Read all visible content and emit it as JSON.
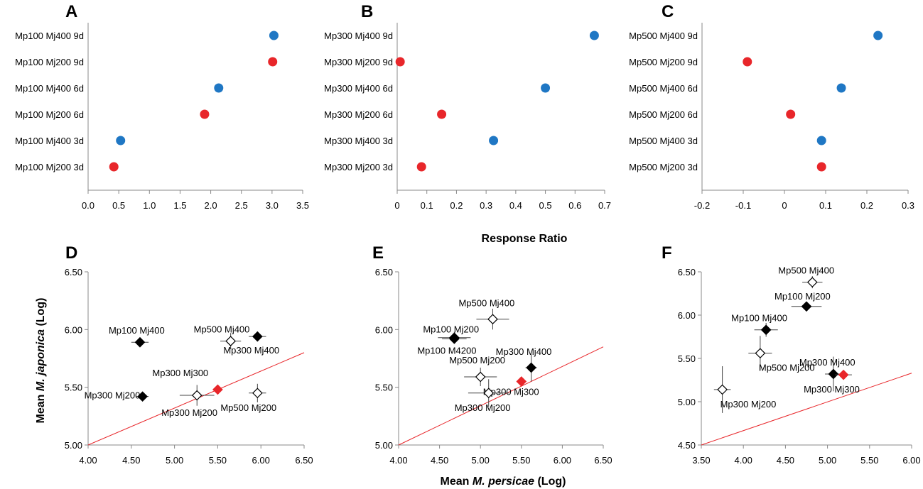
{
  "axis_titles": {
    "response_ratio": "Response Ratio",
    "y_bottom_prefix": "Mean ",
    "y_bottom_italic": "M. japonica",
    "y_bottom_suffix": " (Log)",
    "x_bottom_prefix": "Mean ",
    "x_bottom_italic": "M. persicae",
    "x_bottom_suffix": " (Log)"
  },
  "colors": {
    "blue": "#1f77c4",
    "red": "#e8262a",
    "black": "#000000",
    "line": "#e8262a",
    "axis": "#888888"
  },
  "chart_data": [
    {
      "panel": "A",
      "type": "scatter",
      "xlim": [
        0,
        3.5
      ],
      "xticks": [
        "0.0",
        "0.5",
        "1.0",
        "1.5",
        "2.0",
        "2.5",
        "3.0",
        "3.5"
      ],
      "xtick_values": [
        0,
        0.5,
        1,
        1.5,
        2,
        2.5,
        3,
        3.5
      ],
      "categories": [
        "Mp100 Mj400 9d",
        "Mp100 Mj200 9d",
        "Mp100 Mj400 6d",
        "Mp100 Mj200 6d",
        "Mp100 Mj400 3d",
        "Mp100 Mj200 3d"
      ],
      "values": [
        3.03,
        3.01,
        2.13,
        1.9,
        0.53,
        0.42
      ],
      "colors": [
        "blue",
        "red",
        "blue",
        "red",
        "blue",
        "red"
      ]
    },
    {
      "panel": "B",
      "type": "scatter",
      "xlim": [
        0,
        0.7
      ],
      "xticks": [
        "0",
        "0.1",
        "0.2",
        "0.3",
        "0.4",
        "0.5",
        "0.6",
        "0.7"
      ],
      "xtick_values": [
        0,
        0.1,
        0.2,
        0.3,
        0.4,
        0.5,
        0.6,
        0.7
      ],
      "categories": [
        "Mp300 Mj400 9d",
        "Mp300 Mj200 9d",
        "Mp300 Mj400 6d",
        "Mp300 Mj200 6d",
        "Mp300 Mj400 3d",
        "Mp300 Mj200 3d"
      ],
      "values": [
        0.665,
        0.01,
        0.5,
        0.15,
        0.325,
        0.082
      ],
      "colors": [
        "blue",
        "red",
        "blue",
        "red",
        "blue",
        "red"
      ]
    },
    {
      "panel": "C",
      "type": "scatter",
      "xlim": [
        -0.2,
        0.3
      ],
      "xticks": [
        "-0.2",
        "-0.1",
        "0",
        "0.1",
        "0.2",
        "0.3"
      ],
      "xtick_values": [
        -0.2,
        -0.1,
        0,
        0.1,
        0.2,
        0.3
      ],
      "categories": [
        "Mp500 Mj400 9d",
        "Mp500 Mj200 9d",
        "Mp500 Mj400 6d",
        "Mp500 Mj200 6d",
        "Mp500 Mj400 3d",
        "Mp500 Mj200 3d"
      ],
      "values": [
        0.227,
        -0.09,
        0.138,
        0.015,
        0.09,
        0.09
      ],
      "colors": [
        "blue",
        "red",
        "blue",
        "red",
        "blue",
        "red"
      ]
    },
    {
      "panel": "D",
      "type": "scatter",
      "xlim": [
        4.0,
        6.5
      ],
      "ylim": [
        5.0,
        6.5
      ],
      "xticks": [
        "4.00",
        "4.50",
        "5.00",
        "5.50",
        "6.00",
        "6.50"
      ],
      "xtick_values": [
        4,
        4.5,
        5,
        5.5,
        6,
        6.5
      ],
      "yticks": [
        "5.00",
        "5.50",
        "6.00",
        "6.50"
      ],
      "ytick_values": [
        5,
        5.5,
        6,
        6.5
      ],
      "line": [
        [
          4.0,
          5.0
        ],
        [
          6.5,
          5.8
        ]
      ],
      "points": [
        {
          "label": "Mp100 Mj400",
          "x": 4.6,
          "y": 5.89,
          "xerr": 0.1,
          "yerr": 0.0,
          "style": "filled"
        },
        {
          "label": "Mp500 Mj400",
          "x": 5.65,
          "y": 5.9,
          "xerr": 0.12,
          "yerr": 0.07,
          "style": "open"
        },
        {
          "label": "Mp300 Mj400",
          "x": 5.96,
          "y": 5.94,
          "xerr": 0.1,
          "yerr": 0.04,
          "style": "filled"
        },
        {
          "label": "Mp300 Mj300",
          "x": 5.5,
          "y": 5.48,
          "xerr": 0.0,
          "yerr": 0.0,
          "style": "red"
        },
        {
          "label": "Mp300 Mj200",
          "x": 4.63,
          "y": 5.42,
          "xerr": 0.07,
          "yerr": 0.02,
          "style": "filled"
        },
        {
          "label": "Mp300 Mj200",
          "x": 5.26,
          "y": 5.43,
          "xerr": 0.2,
          "yerr": 0.09,
          "style": "open"
        },
        {
          "label": "Mp500 Mj200",
          "x": 5.96,
          "y": 5.45,
          "xerr": 0.1,
          "yerr": 0.08,
          "style": "open"
        }
      ]
    },
    {
      "panel": "E",
      "type": "scatter",
      "xlim": [
        4.0,
        6.5
      ],
      "ylim": [
        5.0,
        6.5
      ],
      "xticks": [
        "4.00",
        "4.50",
        "5.00",
        "5.50",
        "6.00",
        "6.50"
      ],
      "xtick_values": [
        4,
        4.5,
        5,
        5.5,
        6,
        6.5
      ],
      "yticks": [
        "5.00",
        "5.50",
        "6.00",
        "6.50"
      ],
      "ytick_values": [
        5,
        5.5,
        6,
        6.5
      ],
      "line": [
        [
          4.0,
          5.0
        ],
        [
          6.5,
          5.85
        ]
      ],
      "points": [
        {
          "label": "Mp500 Mj400",
          "x": 5.15,
          "y": 6.09,
          "xerr": 0.2,
          "yerr": 0.09,
          "style": "open"
        },
        {
          "label": "Mp100 Mj200",
          "x": 4.68,
          "y": 5.93,
          "xerr": 0.2,
          "yerr": 0.05,
          "style": "filled"
        },
        {
          "label": "Mp100 M4200",
          "x": 4.68,
          "y": 5.92,
          "xerr": 0.15,
          "yerr": 0.03,
          "style": "filled"
        },
        {
          "label": "Mp300 Mj400",
          "x": 5.62,
          "y": 5.67,
          "xerr": 0.07,
          "yerr": 0.12,
          "style": "filled"
        },
        {
          "label": "Mp500 Mj200",
          "x": 5.0,
          "y": 5.59,
          "xerr": 0.2,
          "yerr": 0.08,
          "style": "open"
        },
        {
          "label": "Mp300 Mj300",
          "x": 5.5,
          "y": 5.55,
          "xerr": 0.0,
          "yerr": 0.0,
          "style": "red"
        },
        {
          "label": "Mp300 Mj200",
          "x": 5.1,
          "y": 5.45,
          "xerr": 0.25,
          "yerr": 0.12,
          "style": "open"
        }
      ]
    },
    {
      "panel": "F",
      "type": "scatter",
      "xlim": [
        3.5,
        6.0
      ],
      "ylim": [
        4.5,
        6.5
      ],
      "xticks": [
        "3.50",
        "4.00",
        "4.50",
        "5.00",
        "5.50",
        "6.00"
      ],
      "xtick_values": [
        3.5,
        4,
        4.5,
        5,
        5.5,
        6
      ],
      "yticks": [
        "4.50",
        "5.00",
        "5.50",
        "6.00",
        "6.50"
      ],
      "ytick_values": [
        4.5,
        5,
        5.5,
        6,
        6.5
      ],
      "line": [
        [
          3.5,
          4.5
        ],
        [
          6.0,
          5.33
        ]
      ],
      "points": [
        {
          "label": "Mp500 Mj400",
          "x": 4.82,
          "y": 6.38,
          "xerr": 0.12,
          "yerr": 0.07,
          "style": "open"
        },
        {
          "label": "Mp100 Mj200",
          "x": 4.75,
          "y": 6.1,
          "xerr": 0.18,
          "yerr": 0.05,
          "style": "filled"
        },
        {
          "label": "Mp100 Mj400",
          "x": 4.27,
          "y": 5.83,
          "xerr": 0.14,
          "yerr": 0.08,
          "style": "filled"
        },
        {
          "label": "Mp500 Mj200",
          "x": 4.2,
          "y": 5.56,
          "xerr": 0.14,
          "yerr": 0.2,
          "style": "open"
        },
        {
          "label": "Mp300 Mj200",
          "x": 3.75,
          "y": 5.14,
          "xerr": 0.1,
          "yerr": 0.27,
          "style": "open"
        },
        {
          "label": "Mp300 Mj400",
          "x": 5.07,
          "y": 5.32,
          "xerr": 0.1,
          "yerr": 0.2,
          "style": "filled"
        },
        {
          "label": "Mp300 Mj300",
          "x": 5.19,
          "y": 5.31,
          "xerr": 0.1,
          "yerr": 0.0,
          "style": "red"
        }
      ]
    }
  ]
}
